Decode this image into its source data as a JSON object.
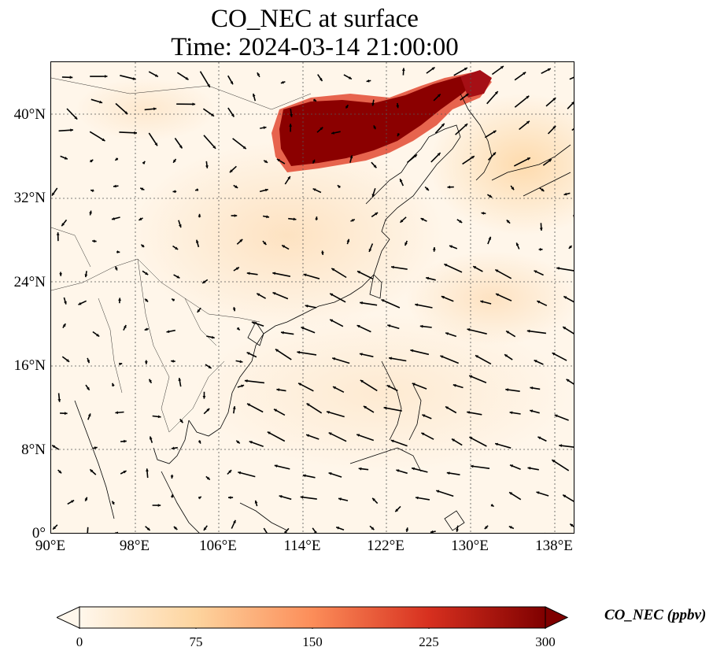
{
  "title": {
    "line1": "CO_NEC at surface",
    "line2": "Time: 2024-03-14 21:00:00"
  },
  "map": {
    "lat_labels": [
      "40°N",
      "32°N",
      "24°N",
      "16°N",
      "8°N",
      "0°"
    ],
    "lon_labels": [
      "90°E",
      "98°E",
      "106°E",
      "114°E",
      "122°E",
      "130°E",
      "138°E"
    ],
    "extent": {
      "lon": [
        90,
        140
      ],
      "lat": [
        0,
        45
      ]
    },
    "gridlines": true,
    "high_concentration_region": "North China Plain / Bohai / Korea plume",
    "wind_vectors": true
  },
  "colorbar": {
    "label": "CO_NEC (ppbv)",
    "ticks": [
      "0",
      "75",
      "150",
      "225",
      "300"
    ],
    "min": 0,
    "max": 300,
    "colormap": "OrRd",
    "colors": [
      "#fff7ec",
      "#fdd49e",
      "#fc8d59",
      "#d7301f",
      "#7f0000"
    ]
  }
}
